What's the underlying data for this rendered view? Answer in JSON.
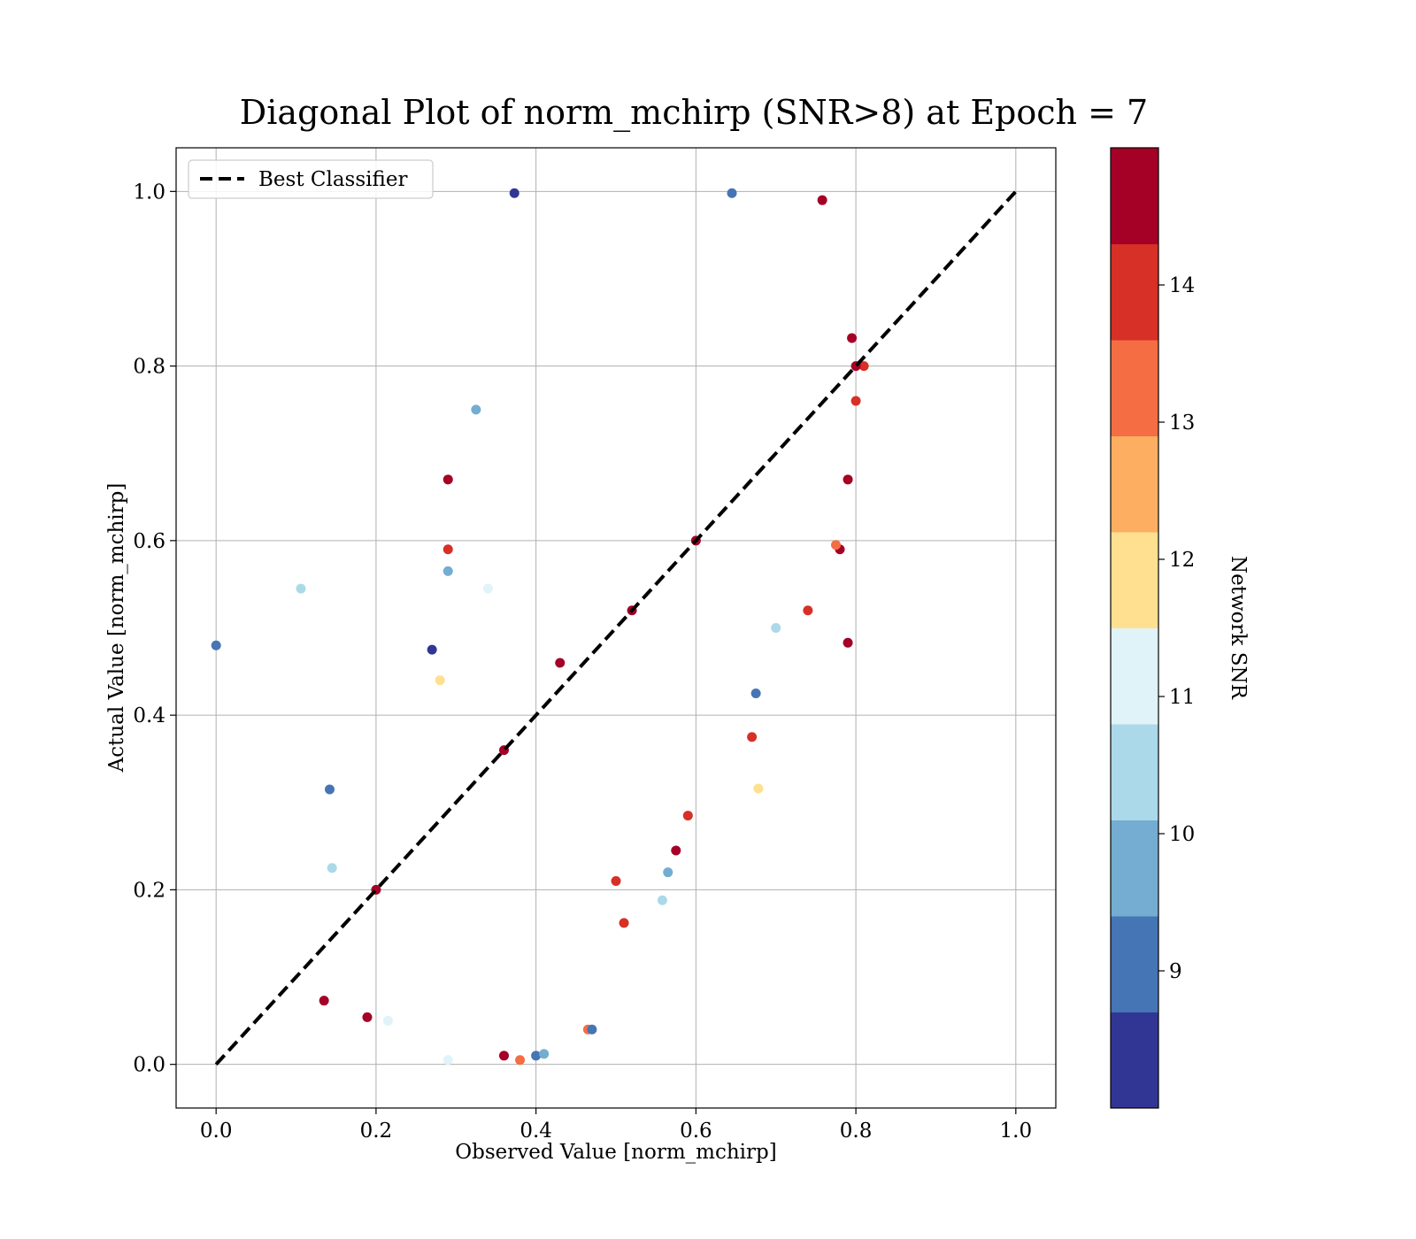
{
  "chart_data": {
    "type": "scatter",
    "title": "Diagonal Plot of norm_mchirp (SNR>8) at Epoch = 7",
    "xlabel": "Observed Value [norm_mchirp]",
    "ylabel": "Actual Value [norm_mchirp]",
    "xlim": [
      -0.05,
      1.05
    ],
    "ylim": [
      -0.05,
      1.05
    ],
    "xticks": [
      "0.0",
      "0.2",
      "0.4",
      "0.6",
      "0.8",
      "1.0"
    ],
    "yticks": [
      "0.0",
      "0.2",
      "0.4",
      "0.6",
      "0.8",
      "1.0"
    ],
    "grid": true,
    "legend": {
      "position": "top-left",
      "entries": [
        "Best Classifier"
      ]
    },
    "reference_line": {
      "name": "Best Classifier",
      "style": "dashed",
      "color": "#000000",
      "x": [
        0.0,
        1.0
      ],
      "y": [
        0.0,
        1.0
      ]
    },
    "colorbar": {
      "label": "Network SNR",
      "range": [
        8,
        15
      ],
      "tick_values": [
        9,
        10,
        11,
        12,
        13,
        14
      ],
      "tick_labels": [
        "9",
        "10",
        "11",
        "12",
        "13",
        "14"
      ],
      "bins": [
        8,
        8.7,
        9.4,
        10.1,
        10.8,
        11.5,
        12.2,
        12.9,
        13.6,
        14.3,
        15
      ],
      "colors": [
        "#313695",
        "#4575b4",
        "#74add1",
        "#abd9e9",
        "#e0f3f8",
        "#fee090",
        "#fdae61",
        "#f46d43",
        "#d73027",
        "#a50026"
      ]
    },
    "points": [
      [
        0.0,
        0.48,
        9.0
      ],
      [
        0.106,
        0.545,
        10.5
      ],
      [
        0.142,
        0.315,
        9.0
      ],
      [
        0.145,
        0.225,
        10.5
      ],
      [
        0.135,
        0.073,
        14.5
      ],
      [
        0.189,
        0.054,
        14.5
      ],
      [
        0.79,
        0.483,
        14.5
      ],
      [
        0.678,
        0.316,
        12.0
      ],
      [
        0.29,
        0.67,
        14.5
      ],
      [
        0.29,
        0.59,
        14.0
      ],
      [
        0.27,
        0.475,
        8.5
      ],
      [
        0.325,
        0.75,
        10.0
      ],
      [
        0.373,
        0.998,
        8.5
      ],
      [
        0.645,
        0.998,
        9.0
      ],
      [
        0.758,
        0.99,
        14.5
      ],
      [
        0.51,
        0.162,
        14.0
      ],
      [
        0.558,
        0.188,
        10.5
      ],
      [
        0.29,
        0.565,
        10.0
      ],
      [
        0.34,
        0.545,
        11.0
      ],
      [
        0.28,
        0.44,
        12.0
      ],
      [
        0.29,
        0.005,
        11.0
      ],
      [
        0.215,
        0.05,
        11.0
      ],
      [
        0.36,
        0.01,
        14.5
      ],
      [
        0.38,
        0.005,
        13.0
      ],
      [
        0.4,
        0.01,
        9.0
      ],
      [
        0.41,
        0.012,
        10.0
      ],
      [
        0.465,
        0.04,
        13.0
      ],
      [
        0.47,
        0.04,
        9.0
      ],
      [
        0.5,
        0.21,
        14.0
      ],
      [
        0.565,
        0.22,
        10.0
      ],
      [
        0.575,
        0.245,
        14.5
      ],
      [
        0.59,
        0.285,
        14.0
      ],
      [
        0.675,
        0.425,
        9.0
      ],
      [
        0.67,
        0.375,
        14.0
      ],
      [
        0.74,
        0.52,
        14.0
      ],
      [
        0.7,
        0.5,
        10.5
      ],
      [
        0.78,
        0.59,
        14.5
      ],
      [
        0.775,
        0.595,
        13.0
      ],
      [
        0.79,
        0.67,
        14.5
      ],
      [
        0.81,
        0.8,
        14.0
      ],
      [
        0.8,
        0.76,
        14.0
      ],
      [
        0.795,
        0.832,
        14.5
      ],
      [
        0.43,
        0.46,
        14.5
      ],
      [
        0.6,
        0.6,
        14.5
      ],
      [
        0.2,
        0.2,
        14.5
      ],
      [
        0.8,
        0.8,
        14.5
      ],
      [
        0.36,
        0.36,
        14.5
      ],
      [
        0.52,
        0.52,
        14.5
      ]
    ]
  }
}
